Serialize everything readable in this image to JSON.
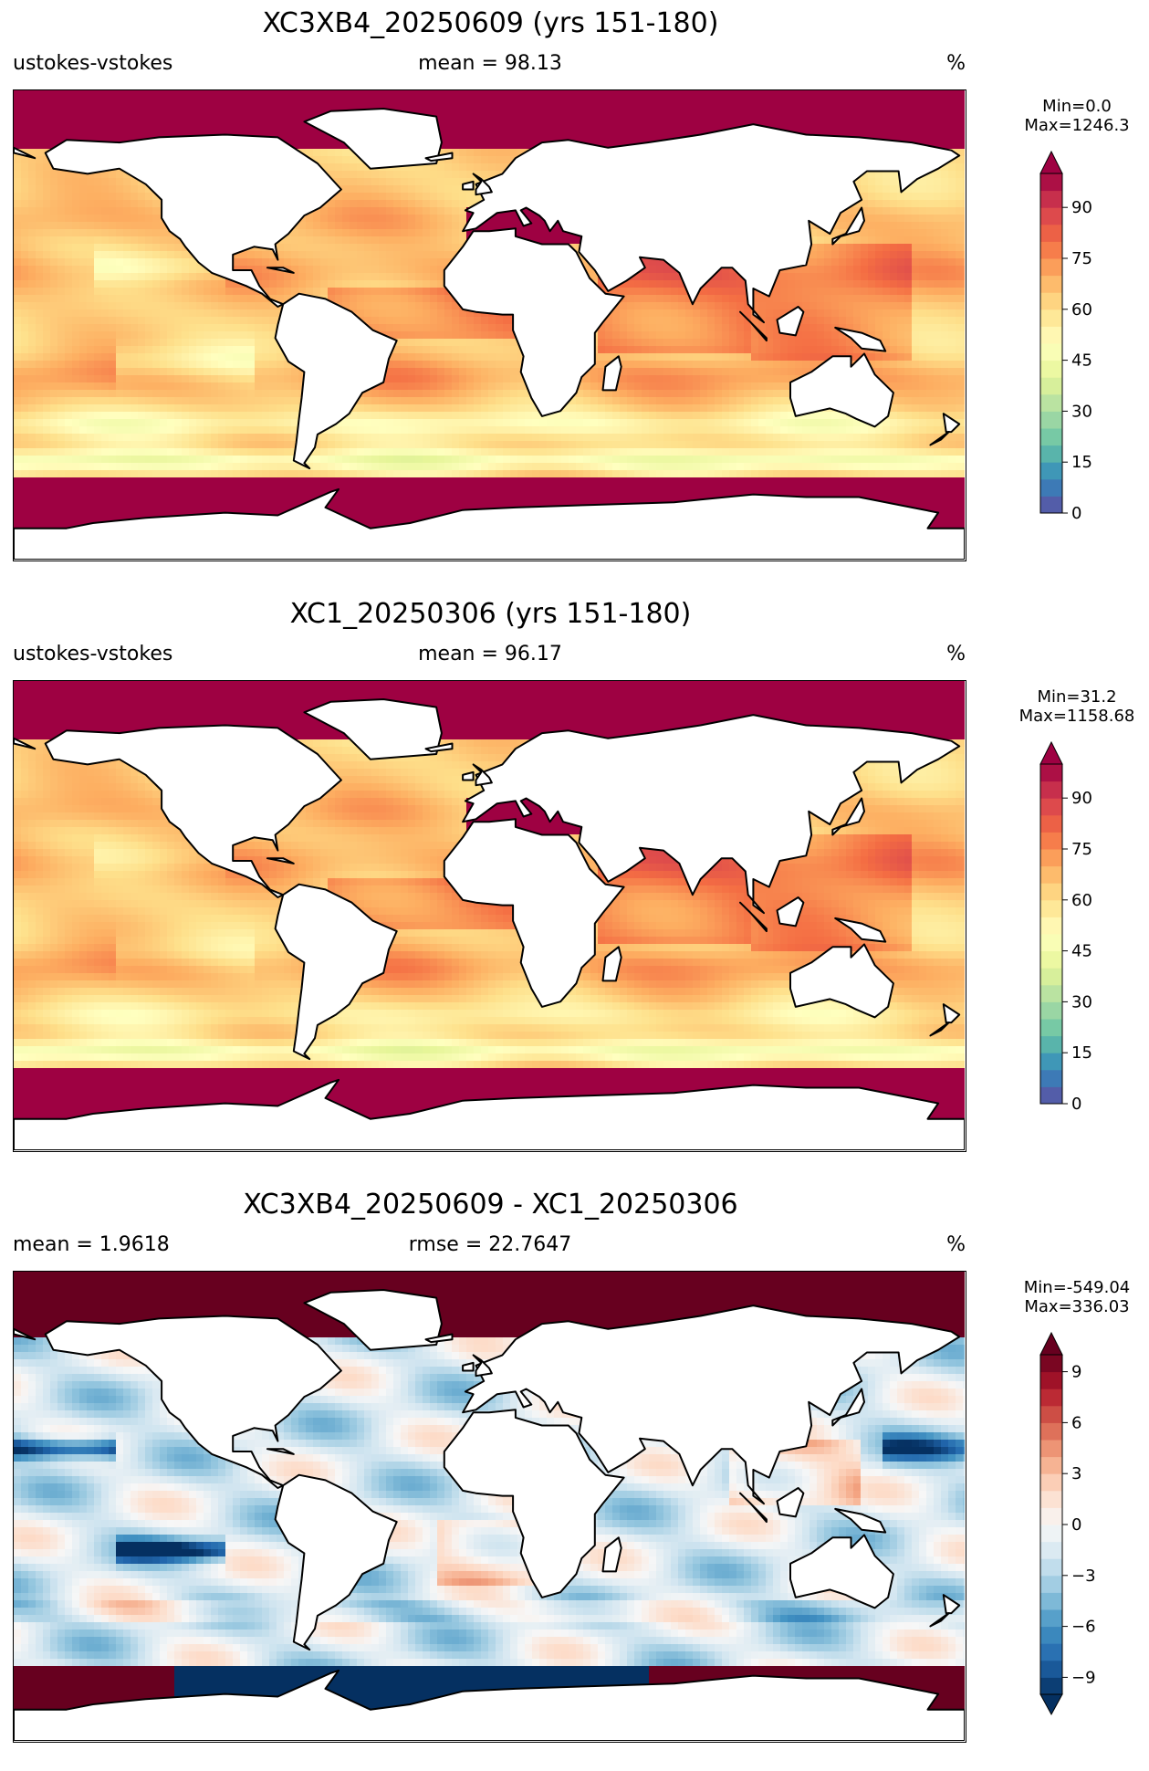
{
  "panels": [
    {
      "title": "XC3XB4_20250609 (yrs 151-180)",
      "left_label": "ustokes-vstokes",
      "center_label": "mean = 98.13",
      "unit": "%",
      "min_label": "Min=0.0",
      "max_label": "Max=1246.3",
      "colorbar": {
        "ticks": [
          "0",
          "15",
          "30",
          "45",
          "60",
          "75",
          "90"
        ],
        "colormap": "Spectral_r",
        "extend": "max"
      }
    },
    {
      "title": "XC1_20250306 (yrs 151-180)",
      "left_label": "ustokes-vstokes",
      "center_label": "mean = 96.17",
      "unit": "%",
      "min_label": "Min=31.2",
      "max_label": "Max=1158.68",
      "colorbar": {
        "ticks": [
          "0",
          "15",
          "30",
          "45",
          "60",
          "75",
          "90"
        ],
        "colormap": "Spectral_r",
        "extend": "max"
      }
    },
    {
      "title": "XC3XB4_20250609 - XC1_20250306",
      "left_label": "mean = 1.9618",
      "center_label": "rmse = 22.7647",
      "unit": "%",
      "min_label": "Min=-549.04",
      "max_label": "Max=336.03",
      "colorbar": {
        "ticks": [
          "−9",
          "−6",
          "−3",
          "0",
          "3",
          "6",
          "9"
        ],
        "colormap": "RdBu_r",
        "extend": "both"
      }
    }
  ],
  "chart_data": [
    {
      "type": "heatmap",
      "title": "XC3XB4_20250609 (yrs 151-180)",
      "variable": "ustokes-vstokes",
      "mean": 98.13,
      "unit": "%",
      "min": 0.0,
      "max": 1246.3,
      "clim": [
        0,
        100
      ],
      "colorbar_ticks": [
        0,
        15,
        30,
        45,
        60,
        75,
        90
      ],
      "colormap": "Spectral_r",
      "projection": "global lat-lon"
    },
    {
      "type": "heatmap",
      "title": "XC1_20250306 (yrs 151-180)",
      "variable": "ustokes-vstokes",
      "mean": 96.17,
      "unit": "%",
      "min": 31.2,
      "max": 1158.68,
      "clim": [
        0,
        100
      ],
      "colorbar_ticks": [
        0,
        15,
        30,
        45,
        60,
        75,
        90
      ],
      "colormap": "Spectral_r",
      "projection": "global lat-lon"
    },
    {
      "type": "heatmap",
      "title": "XC3XB4_20250609 - XC1_20250306",
      "mean": 1.9618,
      "rmse": 22.7647,
      "unit": "%",
      "min": -549.04,
      "max": 336.03,
      "clim": [
        -10,
        10
      ],
      "colorbar_ticks": [
        -9,
        -6,
        -3,
        0,
        3,
        6,
        9
      ],
      "colormap": "RdBu_r",
      "projection": "global lat-lon"
    }
  ]
}
